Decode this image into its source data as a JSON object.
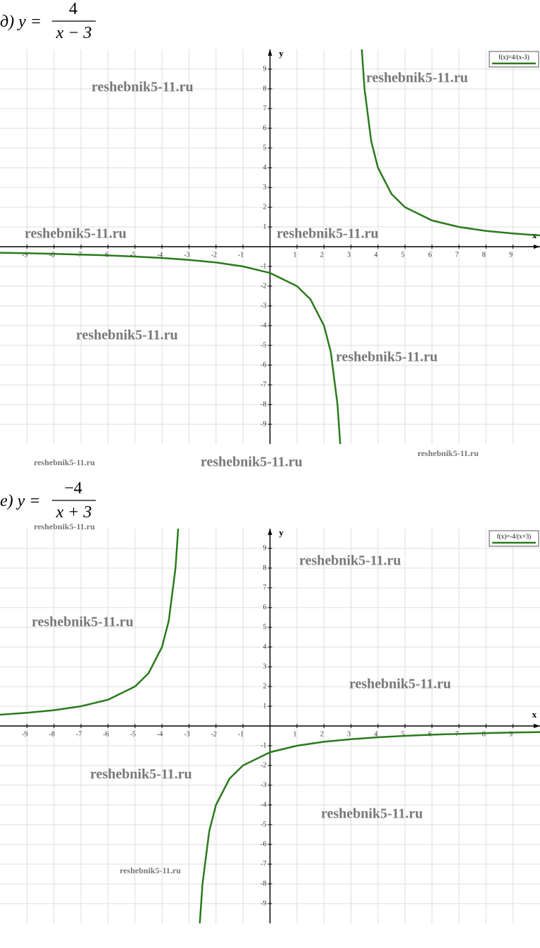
{
  "chart_data": [
    {
      "type": "line",
      "title": {
        "prefix": "д) y =",
        "numerator": "4",
        "denominator": "x − 3"
      },
      "xlabel": "x",
      "ylabel": "y",
      "xlim": [
        -10,
        10
      ],
      "ylim": [
        -10,
        10
      ],
      "xticks": [
        -9,
        -8,
        -7,
        -6,
        -5,
        -4,
        -3,
        -2,
        -1,
        1,
        2,
        3,
        4,
        5,
        6,
        7,
        8,
        9
      ],
      "yticks": [
        -9,
        -8,
        -7,
        -6,
        -5,
        -4,
        -3,
        -2,
        -1,
        1,
        2,
        3,
        4,
        5,
        6,
        7,
        8,
        9
      ],
      "grid": true,
      "legend": "top-right",
      "series": [
        {
          "name": "f(x)=4/(x-3)",
          "color": "#2a7a1c",
          "x": [
            -10,
            -9,
            -8,
            -7,
            -6,
            -5,
            -4,
            -3,
            -2,
            -1,
            0,
            1,
            1.5,
            2,
            2.25,
            2.5,
            2.6,
            3,
            3.4,
            3.5,
            3.75,
            4,
            4.5,
            5,
            6,
            7,
            8,
            9,
            10
          ],
          "values": [
            -0.31,
            -0.33,
            -0.36,
            -0.4,
            -0.44,
            -0.5,
            -0.57,
            -0.67,
            -0.8,
            -1,
            -1.33,
            -2,
            -2.67,
            -4,
            -5.33,
            -8,
            -10,
            null,
            10,
            8,
            5.33,
            4,
            2.67,
            2,
            1.33,
            1,
            0.8,
            0.67,
            0.57
          ]
        }
      ],
      "annotations": [
        "reshebnik5-11.ru",
        "reshebnik5-11.ru",
        "reshebnik5-11.ru",
        "reshebnik5-11.ru",
        "reshebnik5-11.ru",
        "reshebnik5-11.ru",
        "reshebnik5-11.ru",
        "reshebnik5-11.ru",
        "reshebnik5-11.ru"
      ]
    },
    {
      "type": "line",
      "title": {
        "prefix": "е) y =",
        "numerator": "−4",
        "denominator": "x + 3"
      },
      "xlabel": "x",
      "ylabel": "y",
      "xlim": [
        -10,
        10
      ],
      "ylim": [
        -10,
        10
      ],
      "xticks": [
        -9,
        -8,
        -7,
        -6,
        -5,
        -4,
        -3,
        -2,
        -1,
        1,
        2,
        3,
        4,
        5,
        6,
        7,
        8,
        9
      ],
      "yticks": [
        -9,
        -8,
        -7,
        -6,
        -5,
        -4,
        -3,
        -2,
        -1,
        1,
        2,
        3,
        4,
        5,
        6,
        7,
        8,
        9
      ],
      "grid": true,
      "legend": "top-right",
      "series": [
        {
          "name": "f(x)=-4/(x+3)",
          "color": "#2a7a1c",
          "x": [
            -10,
            -9,
            -8,
            -7,
            -6,
            -5,
            -4.5,
            -4,
            -3.75,
            -3.5,
            -3.4,
            -3,
            -2.6,
            -2.5,
            -2.25,
            -2,
            -1.5,
            -1,
            0,
            1,
            2,
            3,
            4,
            5,
            6,
            7,
            8,
            9,
            10
          ],
          "values": [
            0.57,
            0.67,
            0.8,
            1,
            1.33,
            2,
            2.67,
            4,
            5.33,
            8,
            10,
            null,
            -10,
            -8,
            -5.33,
            -4,
            -2.67,
            -2,
            -1.33,
            -1,
            -0.8,
            -0.67,
            -0.57,
            -0.5,
            -0.44,
            -0.4,
            -0.36,
            -0.33,
            -0.31
          ]
        }
      ],
      "annotations": [
        "reshebnik5-11.ru",
        "reshebnik5-11.ru",
        "reshebnik5-11.ru",
        "reshebnik5-11.ru",
        "reshebnik5-11.ru",
        "reshebnik5-11.ru",
        "reshebnik5-11.ru"
      ]
    }
  ]
}
